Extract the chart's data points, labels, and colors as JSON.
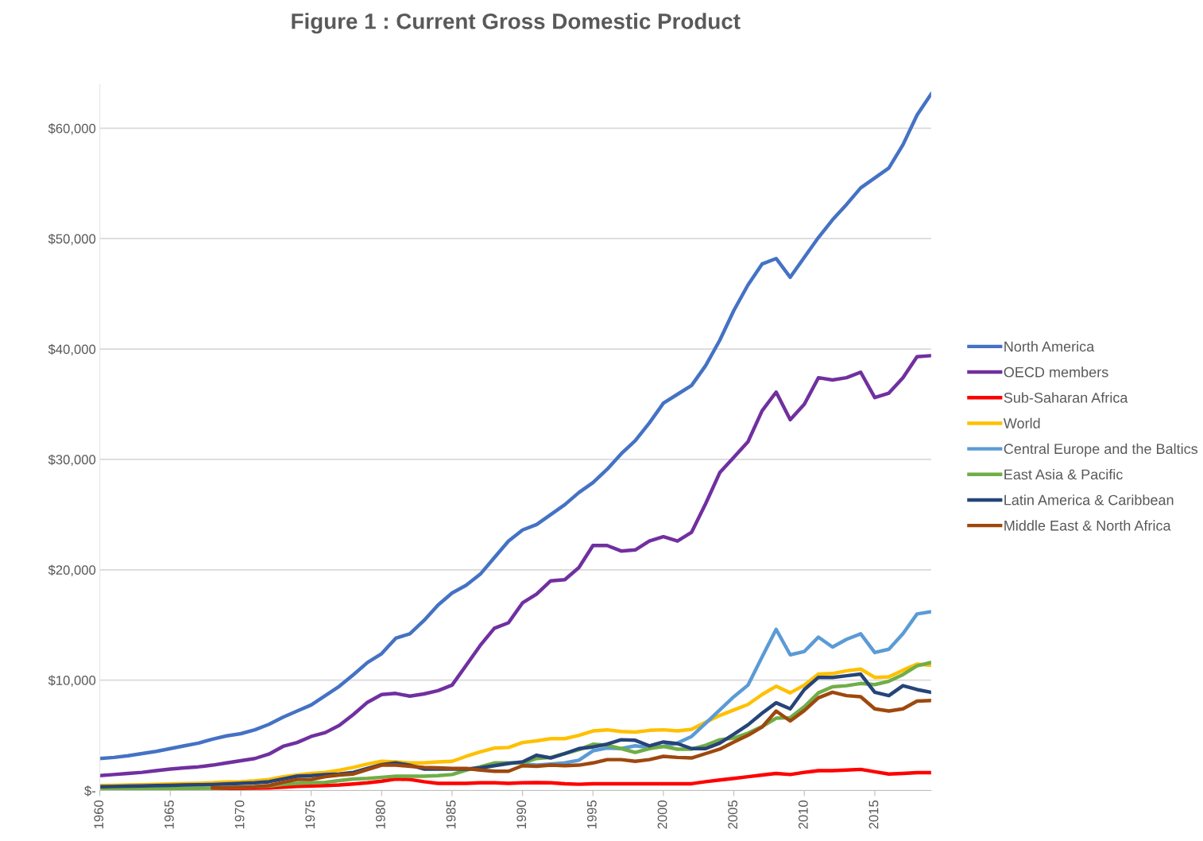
{
  "chart_data": {
    "type": "line",
    "title": "Figure 1 : Current Gross Domestic Product",
    "x": [
      1960,
      1961,
      1962,
      1963,
      1964,
      1965,
      1966,
      1967,
      1968,
      1969,
      1970,
      1971,
      1972,
      1973,
      1974,
      1975,
      1976,
      1977,
      1978,
      1979,
      1980,
      1981,
      1982,
      1983,
      1984,
      1985,
      1986,
      1987,
      1988,
      1989,
      1990,
      1991,
      1992,
      1993,
      1994,
      1995,
      1996,
      1997,
      1998,
      1999,
      2000,
      2001,
      2002,
      2003,
      2004,
      2005,
      2006,
      2007,
      2008,
      2009,
      2010,
      2011,
      2012,
      2013,
      2014,
      2015,
      2016,
      2017,
      2018,
      2019
    ],
    "series": [
      {
        "name": "North America",
        "color": "#4472c4",
        "values": [
          2900,
          3000,
          3150,
          3350,
          3550,
          3800,
          4050,
          4300,
          4650,
          4950,
          5150,
          5500,
          6000,
          6650,
          7200,
          7750,
          8600,
          9450,
          10500,
          11600,
          12400,
          13800,
          14200,
          15400,
          16800,
          17900,
          18600,
          19600,
          21100,
          22600,
          23600,
          24100,
          25000,
          25900,
          27000,
          27900,
          29100,
          30500,
          31700,
          33300,
          35100,
          35900,
          36700,
          38500,
          40800,
          43500,
          45800,
          47700,
          48200,
          46500,
          48300,
          50100,
          51700,
          53100,
          54600,
          55500,
          56400,
          58500,
          61200,
          63100
        ]
      },
      {
        "name": "OECD members",
        "color": "#7030a0",
        "values": [
          1350,
          1450,
          1550,
          1650,
          1800,
          1950,
          2050,
          2150,
          2300,
          2500,
          2700,
          2900,
          3300,
          4000,
          4350,
          4900,
          5250,
          5900,
          6900,
          8000,
          8700,
          8800,
          8550,
          8750,
          9050,
          9550,
          11350,
          13150,
          14700,
          15200,
          17000,
          17800,
          19000,
          19100,
          20200,
          22200,
          22200,
          21700,
          21800,
          22600,
          23000,
          22600,
          23400,
          26000,
          28800,
          30200,
          31600,
          34400,
          36100,
          33600,
          35000,
          37400,
          37200,
          37400,
          37900,
          35600,
          36000,
          37400,
          39300,
          39400
        ]
      },
      {
        "name": "Sub-Saharan Africa",
        "color": "#ff0000",
        "values": [
          null,
          null,
          null,
          null,
          null,
          null,
          null,
          null,
          170,
          190,
          200,
          210,
          240,
          300,
          380,
          420,
          450,
          500,
          600,
          700,
          850,
          1050,
          1000,
          800,
          650,
          650,
          650,
          700,
          700,
          650,
          700,
          720,
          700,
          620,
          570,
          620,
          620,
          620,
          620,
          620,
          620,
          620,
          620,
          800,
          950,
          1100,
          1250,
          1400,
          1550,
          1450,
          1650,
          1800,
          1800,
          1850,
          1920,
          1700,
          1500,
          1550,
          1620,
          1620
        ]
      },
      {
        "name": "World",
        "color": "#ffc000",
        "values": [
          450,
          470,
          500,
          520,
          560,
          600,
          640,
          660,
          700,
          770,
          800,
          880,
          1000,
          1250,
          1400,
          1550,
          1650,
          1850,
          2100,
          2400,
          2650,
          2600,
          2500,
          2500,
          2600,
          2650,
          3100,
          3500,
          3850,
          3900,
          4350,
          4500,
          4700,
          4700,
          5000,
          5400,
          5500,
          5350,
          5300,
          5450,
          5500,
          5400,
          5550,
          6200,
          6800,
          7300,
          7800,
          8700,
          9450,
          8850,
          9550,
          10550,
          10600,
          10850,
          11000,
          10250,
          10300,
          10900,
          11450,
          11350
        ]
      },
      {
        "name": "Central Europe and the Baltics",
        "color": "#5b9bd5",
        "values": [
          null,
          null,
          null,
          null,
          null,
          null,
          null,
          null,
          null,
          null,
          null,
          null,
          null,
          null,
          null,
          null,
          null,
          null,
          null,
          null,
          null,
          null,
          null,
          null,
          null,
          null,
          null,
          null,
          null,
          null,
          2400,
          2300,
          2400,
          2500,
          2750,
          3600,
          3850,
          3800,
          4050,
          3900,
          4000,
          4300,
          4900,
          6100,
          7300,
          8500,
          9550,
          12100,
          14600,
          12300,
          12600,
          13900,
          13000,
          13700,
          14200,
          12500,
          12800,
          14200,
          16000,
          16200
        ]
      },
      {
        "name": "East Asia & Pacific",
        "color": "#70ad47",
        "values": [
          150,
          150,
          150,
          150,
          170,
          180,
          200,
          200,
          220,
          250,
          300,
          350,
          400,
          550,
          650,
          700,
          750,
          900,
          1050,
          1100,
          1200,
          1300,
          1300,
          1300,
          1350,
          1450,
          1850,
          2150,
          2500,
          2500,
          2500,
          2900,
          3000,
          3350,
          3700,
          4200,
          4100,
          3800,
          3450,
          3800,
          4000,
          3750,
          3750,
          4100,
          4600,
          4750,
          5200,
          5800,
          6550,
          6600,
          7600,
          8850,
          9400,
          9500,
          9700,
          9600,
          9900,
          10500,
          11300,
          11600
        ]
      },
      {
        "name": "Latin America & Caribbean",
        "color": "#264478",
        "values": [
          350,
          370,
          400,
          420,
          450,
          470,
          500,
          520,
          550,
          600,
          650,
          700,
          800,
          1050,
          1300,
          1350,
          1450,
          1500,
          1650,
          2000,
          2350,
          2500,
          2300,
          1950,
          1950,
          1950,
          1950,
          2050,
          2250,
          2450,
          2600,
          3200,
          2950,
          3350,
          3800,
          3950,
          4200,
          4600,
          4550,
          4050,
          4400,
          4250,
          3800,
          3800,
          4300,
          5100,
          5950,
          7000,
          7950,
          7400,
          9150,
          10250,
          10250,
          10400,
          10550,
          8900,
          8600,
          9500,
          9150,
          8900
        ]
      },
      {
        "name": "Middle East & North Africa",
        "color": "#9e480e",
        "values": [
          null,
          null,
          null,
          null,
          null,
          null,
          null,
          null,
          250,
          270,
          300,
          350,
          450,
          750,
          1000,
          1000,
          1250,
          1400,
          1500,
          1900,
          2300,
          2300,
          2200,
          2100,
          2050,
          2000,
          2000,
          1850,
          1750,
          1750,
          2250,
          2200,
          2300,
          2250,
          2300,
          2500,
          2800,
          2800,
          2650,
          2800,
          3100,
          3000,
          2950,
          3350,
          3750,
          4400,
          5000,
          5750,
          7200,
          6300,
          7250,
          8400,
          8900,
          8600,
          8500,
          7400,
          7200,
          7400,
          8100,
          8150
        ]
      }
    ],
    "xlim": [
      1960,
      2019
    ],
    "xticks": [
      1960,
      1965,
      1970,
      1975,
      1980,
      1985,
      1990,
      1995,
      2000,
      2005,
      2010,
      2015
    ],
    "ylim": [
      0,
      64000
    ],
    "yticks": [
      {
        "value": 0,
        "label": "$-"
      },
      {
        "value": 10000,
        "label": "$10,000"
      },
      {
        "value": 20000,
        "label": "$20,000"
      },
      {
        "value": 30000,
        "label": "$30,000"
      },
      {
        "value": 40000,
        "label": "$40,000"
      },
      {
        "value": 50000,
        "label": "$50,000"
      },
      {
        "value": 60000,
        "label": "$60,000"
      }
    ],
    "grid": "y",
    "legend": "right",
    "marker": "none",
    "line_style": "solid"
  }
}
